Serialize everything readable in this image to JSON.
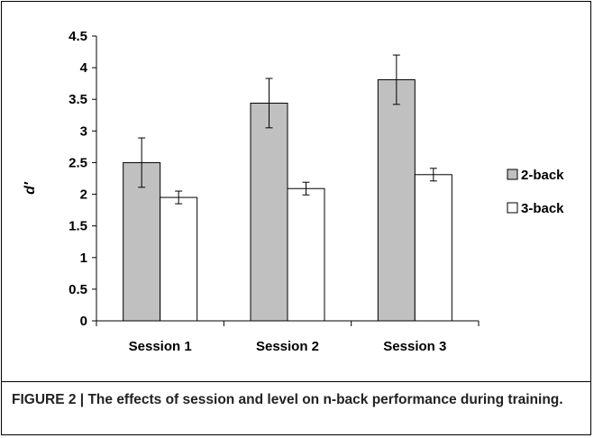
{
  "caption": {
    "label": "FIGURE 2 |",
    "text": "The effects of session and level on n-back performance during training."
  },
  "chart_data": {
    "type": "bar",
    "categories": [
      "Session 1",
      "Session 2",
      "Session 3"
    ],
    "series": [
      {
        "name": "2-back",
        "values": [
          2.5,
          3.44,
          3.81
        ],
        "errors": [
          0.39,
          0.39,
          0.39
        ],
        "color": "#c0c0c0"
      },
      {
        "name": "3-back",
        "values": [
          1.95,
          2.09,
          2.31
        ],
        "errors": [
          0.1,
          0.1,
          0.1
        ],
        "color": "#ffffff"
      }
    ],
    "ylabel": "d′",
    "ylim": [
      0,
      4.5
    ],
    "yticks": [
      "0",
      "0.5",
      "1",
      "1.5",
      "2",
      "2.5",
      "3",
      "3.5",
      "4",
      "4.5"
    ],
    "grid": false,
    "legend": "right"
  }
}
